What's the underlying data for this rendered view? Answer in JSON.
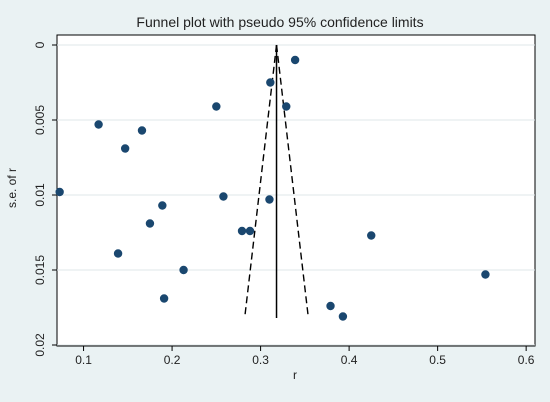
{
  "chart_data": {
    "type": "scatter",
    "title": "Funnel plot with pseudo 95% confidence limits",
    "xlabel": "r",
    "ylabel": "s.e. of r",
    "xlim": [
      0.07,
      0.61
    ],
    "ylim": [
      0,
      0.02
    ],
    "y_reversed": true,
    "x_ticks": [
      0.1,
      0.2,
      0.3,
      0.4,
      0.5,
      0.6
    ],
    "x_tick_labels": [
      "0.1",
      "0.2",
      "0.3",
      "0.4",
      "0.5",
      "0.6"
    ],
    "y_ticks": [
      0,
      0.005,
      0.01,
      0.015,
      0.02
    ],
    "y_tick_labels": [
      "0",
      "0.005",
      "0.01",
      "0.015",
      "0.02"
    ],
    "grid": "horizontal",
    "pooled_effect": 0.318,
    "pooled_line_se_range": [
      0,
      0.0182
    ],
    "confidence_limits": {
      "apex": [
        0.318,
        0
      ],
      "lower_end": [
        0.282,
        0.0182
      ],
      "upper_end": [
        0.354,
        0.0182
      ]
    },
    "points": [
      {
        "x": 0.073,
        "y": 0.0098
      },
      {
        "x": 0.117,
        "y": 0.0053
      },
      {
        "x": 0.139,
        "y": 0.0139
      },
      {
        "x": 0.147,
        "y": 0.0069
      },
      {
        "x": 0.166,
        "y": 0.0057
      },
      {
        "x": 0.175,
        "y": 0.0119
      },
      {
        "x": 0.189,
        "y": 0.0107
      },
      {
        "x": 0.191,
        "y": 0.0169
      },
      {
        "x": 0.213,
        "y": 0.015
      },
      {
        "x": 0.25,
        "y": 0.0041
      },
      {
        "x": 0.258,
        "y": 0.0101
      },
      {
        "x": 0.279,
        "y": 0.0124
      },
      {
        "x": 0.288,
        "y": 0.0124
      },
      {
        "x": 0.31,
        "y": 0.0103
      },
      {
        "x": 0.311,
        "y": 0.0025
      },
      {
        "x": 0.329,
        "y": 0.0041
      },
      {
        "x": 0.339,
        "y": 0.001
      },
      {
        "x": 0.379,
        "y": 0.0174
      },
      {
        "x": 0.393,
        "y": 0.0181
      },
      {
        "x": 0.425,
        "y": 0.0127
      },
      {
        "x": 0.554,
        "y": 0.0153
      }
    ],
    "colors": {
      "background": "#eaf2f3",
      "plot_background": "#ffffff",
      "gridline": "#dfe7ea",
      "axis": "#000000",
      "point": "#1a476f"
    }
  }
}
